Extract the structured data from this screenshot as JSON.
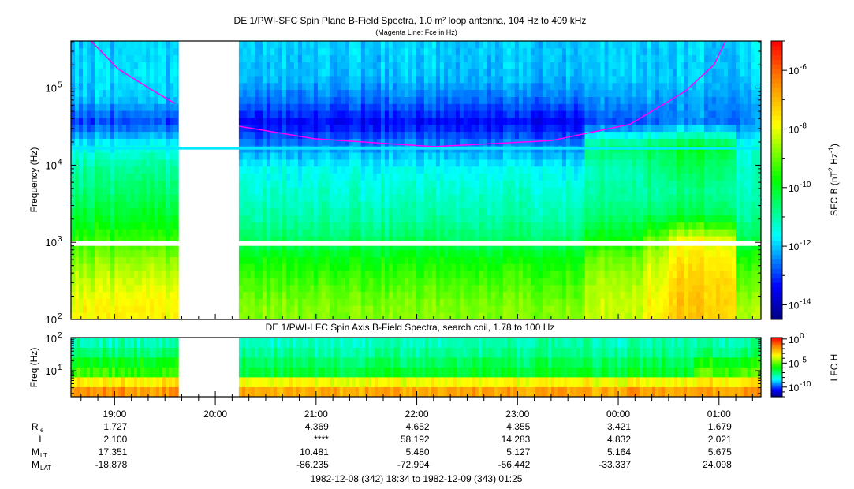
{
  "chart_data": [
    {
      "type": "heatmap",
      "title": "DE 1/PWI-SFC  Spin Plane B-Field Spectra, 1.0 m² loop antenna, 104 Hz to 409 kHz",
      "subtitle": "(Magenta Line: Fce in Hz)",
      "ylabel": "Frequency (Hz)",
      "yscale": "log",
      "ylim_log10": [
        2.0,
        5.61
      ],
      "ytick_labels": [
        {
          "exp": "2",
          "v": 2
        },
        {
          "exp": "3",
          "v": 3
        },
        {
          "exp": "4",
          "v": 4
        },
        {
          "exp": "5",
          "v": 5
        }
      ],
      "colorbar": {
        "label": "SFC B (nT",
        "label_sup1": "2",
        "label_mid": " Hz",
        "label_sup2": "-1",
        "label_end": ")",
        "range_log10": [
          -14.5,
          -5.0
        ],
        "ticks": [
          {
            "exp": "-6",
            "v": -6
          },
          {
            "exp": "-8",
            "v": -8
          },
          {
            "exp": "-10",
            "v": -10
          },
          {
            "exp": "-12",
            "v": -12
          },
          {
            "exp": "-14",
            "v": -14
          }
        ]
      },
      "freq_bins_log10": [
        2.15,
        2.45,
        2.75,
        3.05,
        3.35,
        3.65,
        3.95,
        4.25,
        4.55,
        4.85,
        5.15,
        5.45
      ],
      "missing_band_hz": [
        900,
        1030
      ],
      "line_16khz_log10": -11.8,
      "segments": [
        {
          "from": "18:34",
          "to": "19:38",
          "values": [
            -7.8,
            -8.2,
            -8.7,
            -9.5,
            -10.1,
            -10.6,
            -10.9,
            -11.6,
            -13.0,
            -12.1,
            -11.9,
            -12.0
          ]
        },
        {
          "from": "19:38",
          "to": "20:14",
          "values": null
        },
        {
          "from": "20:14",
          "to": "23:40",
          "values": [
            -8.8,
            -9.2,
            -9.7,
            -10.5,
            -11.0,
            -11.3,
            -11.6,
            -12.4,
            -13.4,
            -12.6,
            -12.1,
            -12.0
          ]
        },
        {
          "from": "23:40",
          "to": "00:15",
          "values": [
            -8.3,
            -8.5,
            -8.9,
            -9.8,
            -10.6,
            -11.0,
            -11.1,
            -10.6,
            -12.9,
            -12.4,
            -12.0,
            -12.0
          ]
        },
        {
          "from": "00:15",
          "to": "00:30",
          "values": [
            -7.8,
            -8.0,
            -8.3,
            -9.0,
            -10.5,
            -10.9,
            -10.8,
            -10.3,
            -12.7,
            -12.3,
            -12.0,
            -12.0
          ]
        },
        {
          "from": "00:30",
          "to": "01:10",
          "values": [
            -7.2,
            -7.3,
            -7.6,
            -8.0,
            -10.3,
            -10.8,
            -10.5,
            -10.0,
            -12.5,
            -12.3,
            -12.0,
            -12.0
          ]
        },
        {
          "from": "01:10",
          "to": "01:25",
          "values": [
            -8.5,
            -9.0,
            -9.5,
            -10.4,
            -11.0,
            -11.2,
            -11.3,
            -11.5,
            -12.5,
            -12.3,
            -12.0,
            -11.8
          ]
        }
      ],
      "fce_line": {
        "color": "#ff00ff",
        "segments": [
          [
            [
              "18:46",
              436000
            ],
            [
              "19:02",
              178000
            ],
            [
              "19:21",
              98000
            ],
            [
              "19:36",
              63000
            ]
          ],
          [
            [
              "20:14",
              32000
            ],
            [
              "20:59",
              22000
            ],
            [
              "22:10",
              17400
            ],
            [
              "23:20",
              20800
            ],
            [
              "00:07",
              34000
            ],
            [
              "00:40",
              91000
            ],
            [
              "00:57",
              200000
            ],
            [
              "01:04",
              436000
            ]
          ]
        ]
      }
    },
    {
      "type": "heatmap",
      "title": "DE 1/PWI-LFC  Spin Axis B-Field Spectra, search coil, 1.78 to 100 Hz",
      "ylabel": "Freq (Hz)",
      "yscale": "log",
      "ylim_log10": [
        0.2,
        2.02
      ],
      "ytick_labels": [
        {
          "exp": "1",
          "v": 1
        },
        {
          "exp": "2",
          "v": 2
        }
      ],
      "colorbar": {
        "label": "LFC H",
        "range_log10": [
          -12,
          0.3
        ],
        "ticks": [
          {
            "exp": "0",
            "v": 0
          },
          {
            "exp": "-5",
            "v": -5
          },
          {
            "exp": "-10",
            "v": -10
          }
        ]
      },
      "freq_bins_log10": [
        0.3,
        0.6,
        0.9,
        1.2,
        1.5,
        1.8
      ],
      "segments": [
        {
          "from": "18:34",
          "to": "19:38",
          "values": [
            -1.6,
            -2.6,
            -5.2,
            -5.8,
            -6.8,
            -7.6
          ]
        },
        {
          "from": "19:38",
          "to": "20:14",
          "values": null
        },
        {
          "from": "20:14",
          "to": "00:45",
          "values": [
            -1.8,
            -2.8,
            -6.2,
            -6.6,
            -7.2,
            -7.6
          ]
        },
        {
          "from": "00:45",
          "to": "01:25",
          "values": [
            -1.6,
            -2.6,
            -5.0,
            -5.6,
            -6.8,
            -7.4
          ]
        }
      ]
    }
  ],
  "xaxis": {
    "start": "18:34",
    "end": "01:25",
    "major_ticks": [
      "19:00",
      "20:00",
      "21:00",
      "22:00",
      "23:00",
      "00:00",
      "01:00"
    ]
  },
  "ephemeris": {
    "rows": [
      {
        "label": "R",
        "sub": "e",
        "values": [
          "1.727",
          "",
          "4.369",
          "4.652",
          "4.355",
          "3.421",
          "1.679"
        ]
      },
      {
        "label": "L",
        "sub": "",
        "values": [
          "2.100",
          "",
          "****",
          "58.192",
          "14.283",
          "4.832",
          "2.021"
        ]
      },
      {
        "label": "M",
        "sub": "LT",
        "values": [
          "17.351",
          "",
          "10.481",
          "5.480",
          "5.127",
          "5.164",
          "5.675"
        ]
      },
      {
        "label": "M",
        "sub": "LAT",
        "values": [
          "-18.878",
          "",
          "-86.235",
          "-72.994",
          "-56.442",
          "-33.337",
          "24.098"
        ]
      }
    ],
    "footer": "1982-12-08 (342) 18:34 to 1982-12-09 (343) 01:25"
  }
}
